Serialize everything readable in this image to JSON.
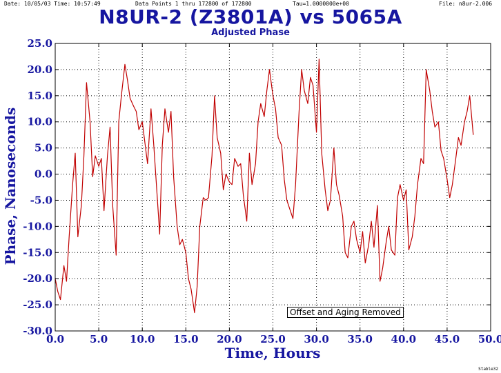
{
  "header": {
    "date": "Date: 10/05/03  Time: 10:57:49",
    "points": "Data Points 1 thru 172800 of 172800",
    "tau": "Tau=1.0000000e+00",
    "file": "File: n8ur-2.006"
  },
  "footer": "Stable32",
  "chart_data": {
    "type": "line",
    "title": "N8UR-2 (Z3801A) vs 5065A",
    "subtitle": "Adjusted Phase",
    "xlabel": "Time, Hours",
    "ylabel": "Phase, Nanoseconds",
    "xlim": [
      0,
      50
    ],
    "ylim": [
      -30,
      25
    ],
    "xticks": [
      "0.0",
      "5.0",
      "10.0",
      "15.0",
      "20.0",
      "25.0",
      "30.0",
      "35.0",
      "40.0",
      "45.0",
      "50.0"
    ],
    "yticks": [
      "-30.0",
      "-25.0",
      "-20.0",
      "-15.0",
      "-10.0",
      "-5.0",
      "0.0",
      "5.0",
      "10.0",
      "15.0",
      "20.0",
      "25.0"
    ],
    "grid": true,
    "annotation": "Offset and Aging Removed",
    "series_color": "#c00000",
    "axis_color": "#1616a0",
    "x": [
      0.0,
      0.3,
      0.6,
      1.0,
      1.3,
      1.6,
      2.0,
      2.3,
      2.6,
      3.0,
      3.3,
      3.6,
      4.0,
      4.3,
      4.6,
      5.0,
      5.3,
      5.6,
      6.0,
      6.3,
      6.6,
      7.0,
      7.3,
      7.6,
      8.0,
      8.3,
      8.6,
      9.0,
      9.3,
      9.6,
      10.0,
      10.3,
      10.6,
      11.0,
      11.3,
      11.6,
      12.0,
      12.3,
      12.6,
      13.0,
      13.3,
      13.6,
      14.0,
      14.3,
      14.6,
      15.0,
      15.3,
      15.6,
      16.0,
      16.3,
      16.6,
      17.0,
      17.3,
      17.6,
      18.0,
      18.3,
      18.6,
      19.0,
      19.3,
      19.6,
      20.0,
      20.3,
      20.6,
      21.0,
      21.3,
      21.6,
      22.0,
      22.3,
      22.6,
      23.0,
      23.3,
      23.6,
      24.0,
      24.3,
      24.6,
      25.0,
      25.3,
      25.6,
      26.0,
      26.3,
      26.6,
      27.0,
      27.3,
      27.6,
      28.0,
      28.3,
      28.6,
      29.0,
      29.3,
      29.6,
      30.0,
      30.3,
      30.6,
      31.0,
      31.3,
      31.6,
      32.0,
      32.3,
      32.6,
      33.0,
      33.3,
      33.6,
      34.0,
      34.3,
      34.6,
      35.0,
      35.3,
      35.6,
      36.0,
      36.3,
      36.6,
      37.0,
      37.3,
      37.6,
      38.0,
      38.3,
      38.6,
      39.0,
      39.3,
      39.6,
      40.0,
      40.3,
      40.6,
      41.0,
      41.3,
      41.6,
      42.0,
      42.3,
      42.6,
      43.0,
      43.3,
      43.6,
      44.0,
      44.3,
      44.6,
      45.0,
      45.3,
      45.6,
      46.0,
      46.3,
      46.6,
      47.0,
      47.3,
      47.6,
      48.0
    ],
    "values": [
      -20.0,
      -22.5,
      -24.0,
      -17.5,
      -20.5,
      -12.0,
      -2.0,
      4.0,
      -12.0,
      -6.0,
      3.5,
      17.5,
      10.0,
      -0.5,
      3.5,
      1.5,
      3.0,
      -7.0,
      3.5,
      9.0,
      -6.0,
      -15.5,
      10.0,
      15.0,
      21.0,
      18.0,
      14.5,
      13.0,
      12.0,
      8.5,
      10.0,
      6.0,
      2.0,
      12.5,
      6.0,
      -1.5,
      -11.5,
      5.5,
      12.5,
      8.0,
      12.0,
      -0.5,
      -10.0,
      -13.5,
      -12.5,
      -15.0,
      -20.0,
      -22.0,
      -26.5,
      -21.5,
      -10.0,
      -4.5,
      -5.0,
      -4.5,
      3.5,
      15.0,
      7.0,
      4.0,
      -3.0,
      0.0,
      -1.5,
      -2.0,
      3.0,
      1.5,
      2.0,
      -4.0,
      -9.0,
      4.0,
      -2.0,
      2.0,
      10.0,
      13.5,
      11.0,
      16.0,
      20.0,
      15.0,
      12.5,
      7.0,
      5.5,
      -1.0,
      -5.0,
      -7.0,
      -8.5,
      -2.0,
      12.0,
      20.0,
      16.0,
      13.5,
      18.5,
      17.0,
      8.0,
      22.0,
      4.0,
      -3.0,
      -7.0,
      -5.0,
      5.0,
      -2.0,
      -4.0,
      -8.0,
      -15.0,
      -16.0,
      -10.0,
      -9.0,
      -12.5,
      -15.0,
      -11.0,
      -17.0,
      -13.5,
      -9.0,
      -14.0,
      -6.0,
      -20.5,
      -18.0,
      -13.0,
      -10.0,
      -14.5,
      -15.5,
      -4.5,
      -2.0,
      -5.0,
      -3.0,
      -14.5,
      -12.0,
      -8.0,
      -2.0,
      3.0,
      2.0,
      20.0,
      16.0,
      12.0,
      9.0,
      10.0,
      4.5,
      3.0,
      -1.0,
      -4.5,
      -2.0,
      3.0,
      7.0,
      5.5,
      10.0,
      12.0,
      15.0,
      7.5
    ]
  }
}
